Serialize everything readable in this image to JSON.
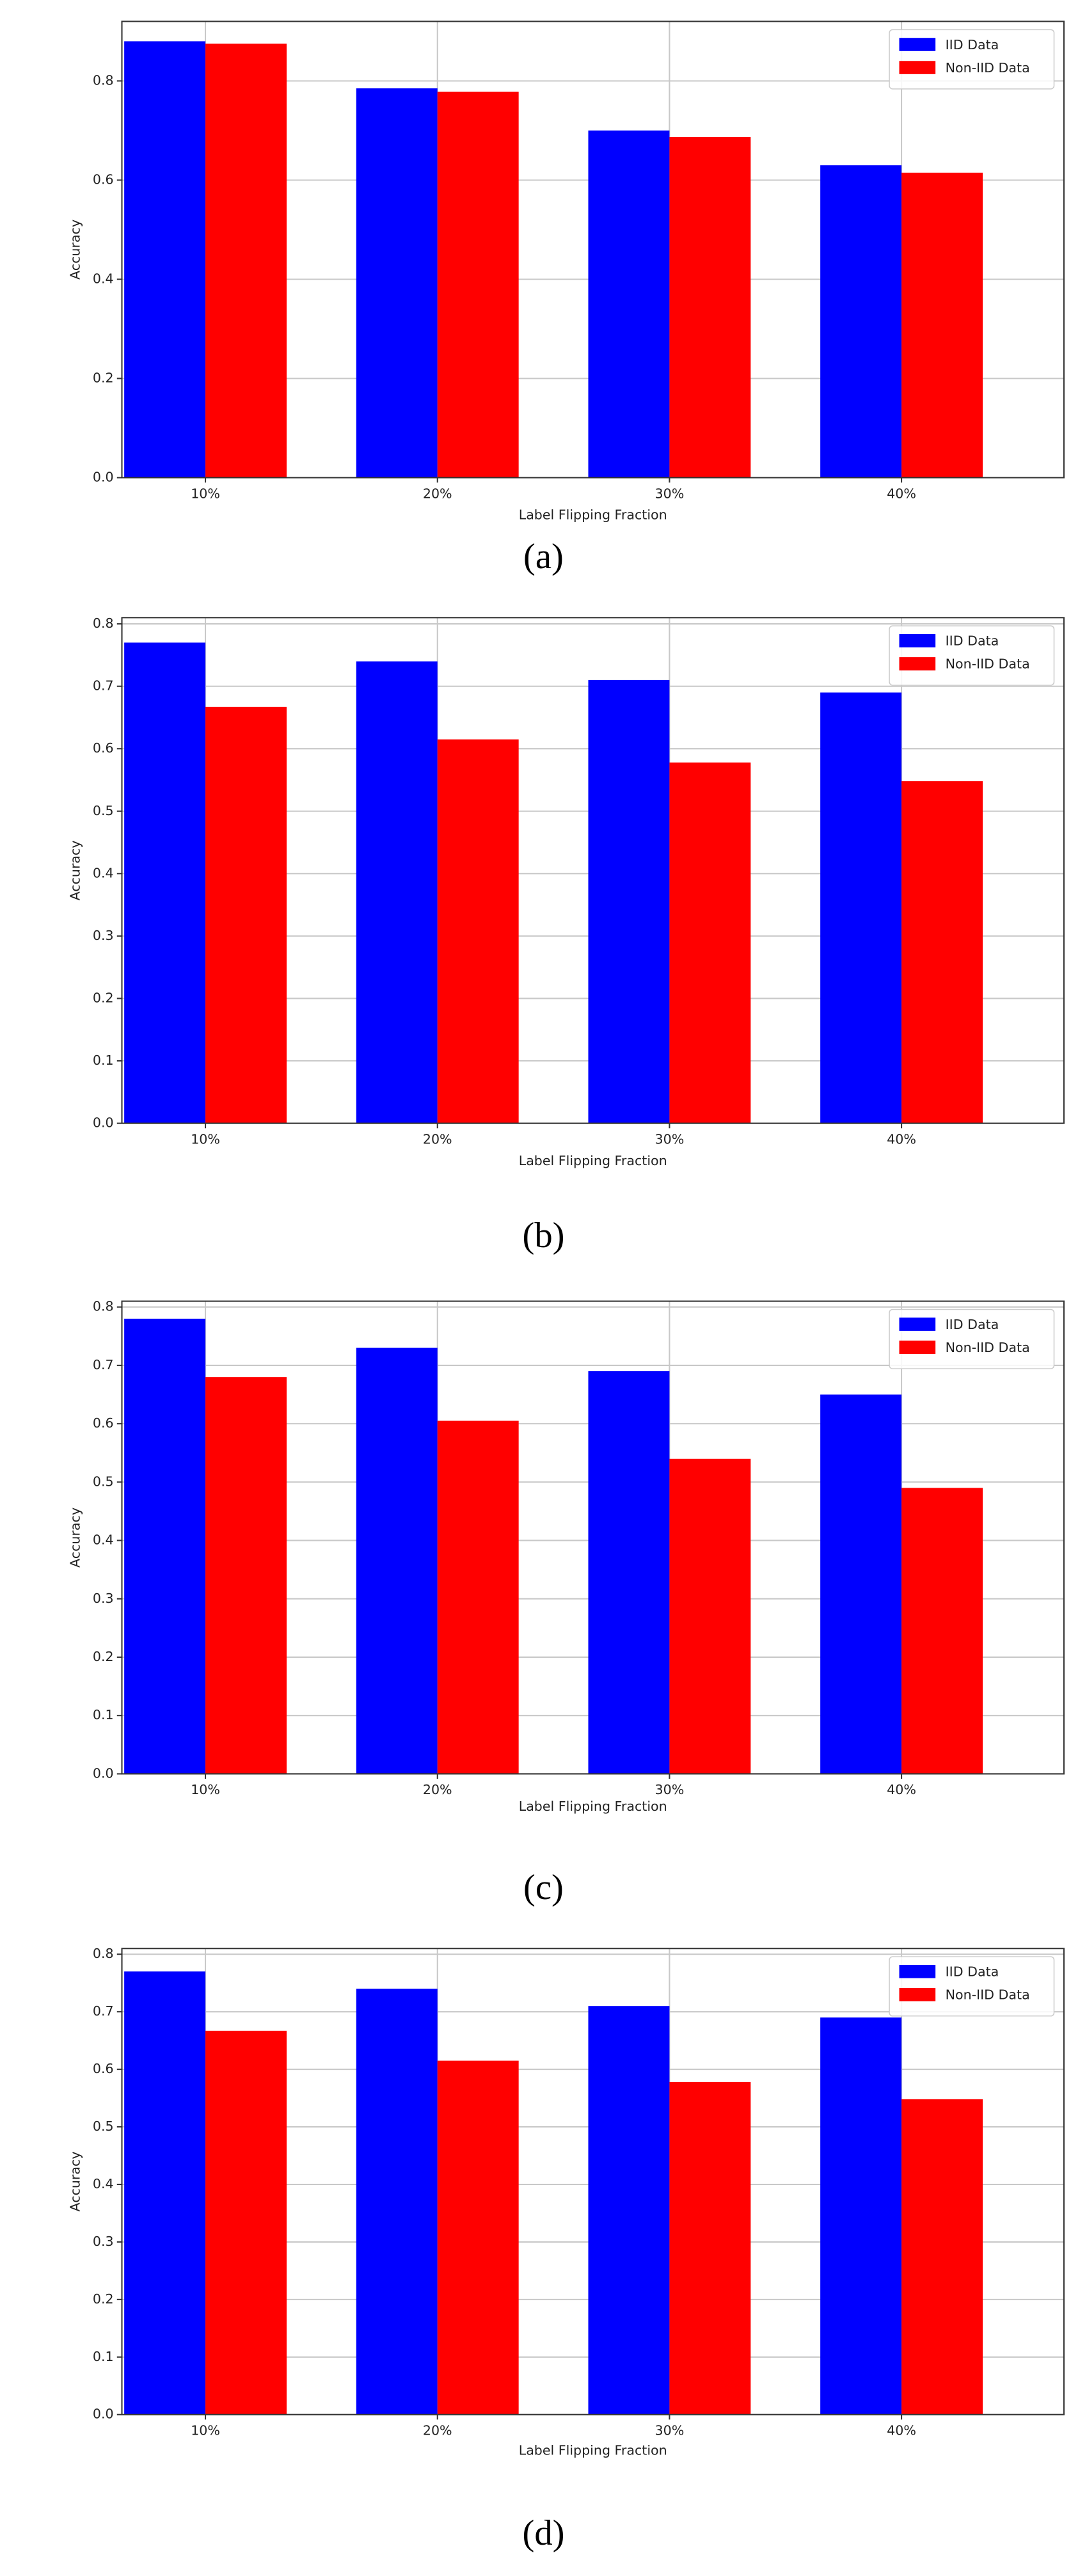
{
  "chart_data": [
    {
      "type": "bar",
      "caption": "(a)",
      "xlabel": "Label Flipping Fraction",
      "ylabel": "Accuracy",
      "categories": [
        "10%",
        "20%",
        "30%",
        "40%"
      ],
      "series": [
        {
          "name": "IID Data",
          "color": "#0000ff",
          "values": [
            0.88,
            0.785,
            0.7,
            0.63
          ]
        },
        {
          "name": "Non-IID Data",
          "color": "#ff0000",
          "values": [
            0.875,
            0.778,
            0.687,
            0.615
          ]
        }
      ],
      "ylim": [
        0,
        0.92
      ],
      "yticks": [
        {
          "value": 0,
          "label": "0.0"
        },
        0.2,
        0.4,
        0.6,
        0.8
      ],
      "grid": true,
      "legend": "upper right"
    },
    {
      "type": "bar",
      "caption": "(b)",
      "xlabel": "Label Flipping Fraction",
      "ylabel": "Accuracy",
      "categories": [
        "10%",
        "20%",
        "30%",
        "40%"
      ],
      "series": [
        {
          "name": "IID Data",
          "color": "#0000ff",
          "values": [
            0.77,
            0.74,
            0.71,
            0.69
          ]
        },
        {
          "name": "Non-IID Data",
          "color": "#ff0000",
          "values": [
            0.667,
            0.615,
            0.578,
            0.548
          ]
        }
      ],
      "ylim": [
        0,
        0.81
      ],
      "yticks": [
        {
          "value": 0,
          "label": "0.0"
        },
        0.1,
        0.2,
        0.3,
        0.4,
        0.5,
        0.6,
        0.7,
        0.8
      ],
      "grid": true,
      "legend": "upper right"
    },
    {
      "type": "bar",
      "caption": "(c)",
      "xlabel": "Label Flipping Fraction",
      "ylabel": "Accuracy",
      "categories": [
        "10%",
        "20%",
        "30%",
        "40%"
      ],
      "series": [
        {
          "name": "IID Data",
          "color": "#0000ff",
          "values": [
            0.78,
            0.73,
            0.69,
            0.65
          ]
        },
        {
          "name": "Non-IID Data",
          "color": "#ff0000",
          "values": [
            0.68,
            0.605,
            0.54,
            0.49
          ]
        }
      ],
      "ylim": [
        0,
        0.81
      ],
      "yticks": [
        {
          "value": 0,
          "label": "0.0"
        },
        0.1,
        0.2,
        0.3,
        0.4,
        0.5,
        0.6,
        0.7,
        0.8
      ],
      "grid": true,
      "legend": "upper right"
    },
    {
      "type": "bar",
      "caption": "(d)",
      "xlabel": "Label Flipping Fraction",
      "ylabel": "Accuracy",
      "categories": [
        "10%",
        "20%",
        "30%",
        "40%"
      ],
      "series": [
        {
          "name": "IID Data",
          "color": "#0000ff",
          "values": [
            0.77,
            0.74,
            0.71,
            0.69
          ]
        },
        {
          "name": "Non-IID Data",
          "color": "#ff0000",
          "values": [
            0.667,
            0.615,
            0.578,
            0.548
          ]
        }
      ],
      "ylim": [
        0,
        0.81
      ],
      "yticks": [
        {
          "value": 0,
          "label": "0.0"
        },
        0.1,
        0.2,
        0.3,
        0.4,
        0.5,
        0.6,
        0.7,
        0.8
      ],
      "grid": true,
      "legend": "upper right"
    }
  ]
}
